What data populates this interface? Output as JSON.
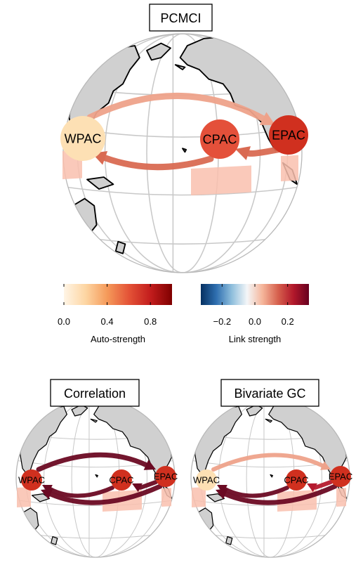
{
  "colors": {
    "wpac_auto": "#fde0b4",
    "cpac_auto": "#e4503a",
    "epac_auto": "#d0301f",
    "dark_link": "#6b0a23",
    "red_link": "#b51a2e",
    "mid_link": "#d96a52",
    "light_link": "#eea28a",
    "region_box": "#f9bfae"
  },
  "panels": {
    "pcmci": {
      "title": "PCMCI",
      "nodes": [
        {
          "label": "WPAC",
          "auto_strength": 0.15,
          "color_key": "wpac_auto"
        },
        {
          "label": "CPAC",
          "auto_strength": 0.7,
          "color_key": "cpac_auto"
        },
        {
          "label": "EPAC",
          "auto_strength": 0.85,
          "color_key": "epac_auto"
        }
      ],
      "links": [
        {
          "from": "WPAC",
          "to": "EPAC",
          "strength": 0.15
        },
        {
          "from": "EPAC",
          "to": "CPAC",
          "strength": 0.18
        },
        {
          "from": "CPAC",
          "to": "WPAC",
          "strength": 0.2
        }
      ]
    },
    "correlation": {
      "title": "Correlation",
      "nodes": [
        {
          "label": "WPAC",
          "auto_strength": 0.8,
          "color_key": "epac_auto"
        },
        {
          "label": "CPAC",
          "auto_strength": 0.85,
          "color_key": "epac_auto"
        },
        {
          "label": "EPAC",
          "auto_strength": 0.85,
          "color_key": "epac_auto"
        }
      ],
      "links": [
        {
          "from": "WPAC",
          "to": "EPAC",
          "strength": 0.32
        },
        {
          "from": "EPAC",
          "to": "WPAC",
          "strength": 0.32
        },
        {
          "from": "CPAC",
          "to": "WPAC",
          "strength": 0.32
        },
        {
          "from": "EPAC",
          "to": "CPAC",
          "strength": 0.32
        }
      ]
    },
    "bivariate_gc": {
      "title": "Bivariate GC",
      "nodes": [
        {
          "label": "WPAC",
          "auto_strength": 0.2,
          "color_key": "wpac_auto"
        },
        {
          "label": "CPAC",
          "auto_strength": 0.8,
          "color_key": "epac_auto"
        },
        {
          "label": "EPAC",
          "auto_strength": 0.85,
          "color_key": "epac_auto"
        }
      ],
      "links": [
        {
          "from": "WPAC",
          "to": "EPAC",
          "strength": 0.15
        },
        {
          "from": "EPAC",
          "to": "WPAC",
          "strength": 0.32
        },
        {
          "from": "CPAC",
          "to": "WPAC",
          "strength": 0.3
        },
        {
          "from": "EPAC",
          "to": "CPAC",
          "strength": 0.25
        }
      ]
    }
  },
  "colorbars": {
    "auto": {
      "title": "Auto-strength",
      "range": [
        0,
        1
      ],
      "ticks": [
        {
          "value": 0,
          "label": "0.0"
        },
        {
          "value": 0.4,
          "label": "0.4"
        },
        {
          "value": 0.8,
          "label": "0.8"
        }
      ],
      "stops": [
        "#fff5e6",
        "#fdd6a3",
        "#f59a5a",
        "#e45337",
        "#c31d1d",
        "#7f0000"
      ]
    },
    "link": {
      "title": "Link strength",
      "range": [
        -0.33,
        0.33
      ],
      "ticks": [
        {
          "value": -0.2,
          "label": "−0.2"
        },
        {
          "value": 0,
          "label": "0.0"
        },
        {
          "value": 0.2,
          "label": "0.2"
        }
      ],
      "stops": [
        "#053061",
        "#2f6fb0",
        "#8ebedc",
        "#f4f6f8",
        "#f5b59a",
        "#d6604d",
        "#b2182b",
        "#67001f"
      ]
    }
  }
}
